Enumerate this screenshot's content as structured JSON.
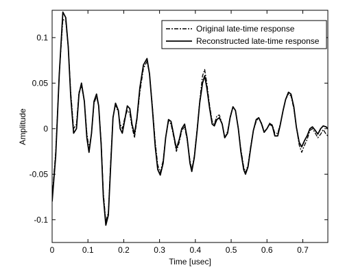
{
  "chart_data": {
    "type": "line",
    "title": "",
    "xlabel": "Time [usec]",
    "ylabel": "Amplitude",
    "xlim": [
      0,
      0.77
    ],
    "ylim": [
      -0.125,
      0.13
    ],
    "xticks": [
      0,
      0.1,
      0.2,
      0.3,
      0.4,
      0.5,
      0.6,
      0.7
    ],
    "xtick_labels": [
      "0",
      "0.1",
      "0.2",
      "0.3",
      "0.4",
      "0.5",
      "0.6",
      "0.7"
    ],
    "yticks": [
      -0.1,
      -0.05,
      0,
      0.05,
      0.1
    ],
    "ytick_labels": [
      "-0.1",
      "-0.05",
      "0",
      "0.05",
      "0.1"
    ],
    "grid": false,
    "legend_position": "top-right",
    "series": [
      {
        "name": "Original late-time response",
        "style": "dashdot",
        "color": "#000000",
        "points": [
          [
            0,
            -0.075
          ],
          [
            0.01,
            -0.025
          ],
          [
            0.02,
            0.06
          ],
          [
            0.03,
            0.12
          ],
          [
            0.038,
            0.118
          ],
          [
            0.045,
            0.09
          ],
          [
            0.052,
            0.04
          ],
          [
            0.06,
            0.0
          ],
          [
            0.068,
            0.005
          ],
          [
            0.075,
            0.04
          ],
          [
            0.082,
            0.047
          ],
          [
            0.09,
            0.03
          ],
          [
            0.097,
            -0.005
          ],
          [
            0.103,
            -0.022
          ],
          [
            0.11,
            -0.005
          ],
          [
            0.117,
            0.028
          ],
          [
            0.124,
            0.035
          ],
          [
            0.13,
            0.025
          ],
          [
            0.137,
            -0.015
          ],
          [
            0.143,
            -0.07
          ],
          [
            0.15,
            -0.102
          ],
          [
            0.157,
            -0.092
          ],
          [
            0.163,
            -0.04
          ],
          [
            0.17,
            0.013
          ],
          [
            0.177,
            0.026
          ],
          [
            0.185,
            0.018
          ],
          [
            0.19,
            0.005
          ],
          [
            0.196,
            0.0
          ],
          [
            0.203,
            0.012
          ],
          [
            0.21,
            0.02
          ],
          [
            0.217,
            0.017
          ],
          [
            0.223,
            0.002
          ],
          [
            0.23,
            -0.01
          ],
          [
            0.237,
            0.01
          ],
          [
            0.245,
            0.04
          ],
          [
            0.255,
            0.066
          ],
          [
            0.265,
            0.074
          ],
          [
            0.272,
            0.06
          ],
          [
            0.28,
            0.025
          ],
          [
            0.288,
            -0.015
          ],
          [
            0.295,
            -0.04
          ],
          [
            0.302,
            -0.048
          ],
          [
            0.31,
            -0.035
          ],
          [
            0.317,
            -0.01
          ],
          [
            0.325,
            0.008
          ],
          [
            0.332,
            0.005
          ],
          [
            0.34,
            -0.01
          ],
          [
            0.347,
            -0.025
          ],
          [
            0.355,
            -0.015
          ],
          [
            0.362,
            -0.002
          ],
          [
            0.37,
            0.002
          ],
          [
            0.377,
            -0.012
          ],
          [
            0.385,
            -0.035
          ],
          [
            0.39,
            -0.045
          ],
          [
            0.397,
            -0.03
          ],
          [
            0.405,
            0.0
          ],
          [
            0.412,
            0.03
          ],
          [
            0.42,
            0.058
          ],
          [
            0.426,
            0.065
          ],
          [
            0.432,
            0.05
          ],
          [
            0.44,
            0.025
          ],
          [
            0.447,
            0.008
          ],
          [
            0.453,
            0.005
          ],
          [
            0.46,
            0.014
          ],
          [
            0.467,
            0.015
          ],
          [
            0.475,
            0.005
          ],
          [
            0.482,
            -0.01
          ],
          [
            0.49,
            -0.003
          ],
          [
            0.497,
            0.013
          ],
          [
            0.505,
            0.024
          ],
          [
            0.512,
            0.02
          ],
          [
            0.52,
            0.0
          ],
          [
            0.527,
            -0.022
          ],
          [
            0.535,
            -0.042
          ],
          [
            0.54,
            -0.048
          ],
          [
            0.547,
            -0.04
          ],
          [
            0.555,
            -0.018
          ],
          [
            0.562,
            -0.002
          ],
          [
            0.57,
            0.008
          ],
          [
            0.577,
            0.012
          ],
          [
            0.585,
            0.006
          ],
          [
            0.592,
            -0.003
          ],
          [
            0.6,
            0.0
          ],
          [
            0.607,
            0.006
          ],
          [
            0.615,
            0.004
          ],
          [
            0.622,
            -0.005
          ],
          [
            0.63,
            -0.005
          ],
          [
            0.637,
            0.005
          ],
          [
            0.645,
            0.02
          ],
          [
            0.652,
            0.032
          ],
          [
            0.66,
            0.038
          ],
          [
            0.667,
            0.036
          ],
          [
            0.675,
            0.022
          ],
          [
            0.682,
            0.002
          ],
          [
            0.69,
            -0.018
          ],
          [
            0.697,
            -0.026
          ],
          [
            0.705,
            -0.018
          ],
          [
            0.712,
            -0.012
          ],
          [
            0.72,
            -0.002
          ],
          [
            0.727,
            0.0
          ],
          [
            0.735,
            -0.005
          ],
          [
            0.742,
            -0.01
          ],
          [
            0.75,
            -0.006
          ],
          [
            0.757,
            -0.001
          ],
          [
            0.765,
            -0.006
          ],
          [
            0.77,
            -0.008
          ]
        ]
      },
      {
        "name": "Reconstructed late-time response",
        "style": "solid",
        "color": "#000000",
        "points": [
          [
            0,
            -0.08
          ],
          [
            0.01,
            -0.03
          ],
          [
            0.02,
            0.06
          ],
          [
            0.03,
            0.128
          ],
          [
            0.038,
            0.122
          ],
          [
            0.045,
            0.09
          ],
          [
            0.052,
            0.035
          ],
          [
            0.06,
            -0.005
          ],
          [
            0.068,
            0.0
          ],
          [
            0.075,
            0.038
          ],
          [
            0.082,
            0.05
          ],
          [
            0.09,
            0.03
          ],
          [
            0.097,
            -0.01
          ],
          [
            0.103,
            -0.026
          ],
          [
            0.11,
            -0.005
          ],
          [
            0.117,
            0.03
          ],
          [
            0.124,
            0.038
          ],
          [
            0.13,
            0.025
          ],
          [
            0.137,
            -0.018
          ],
          [
            0.143,
            -0.075
          ],
          [
            0.15,
            -0.106
          ],
          [
            0.157,
            -0.095
          ],
          [
            0.163,
            -0.045
          ],
          [
            0.17,
            0.012
          ],
          [
            0.177,
            0.028
          ],
          [
            0.185,
            0.02
          ],
          [
            0.19,
            0.0
          ],
          [
            0.196,
            -0.005
          ],
          [
            0.203,
            0.01
          ],
          [
            0.21,
            0.025
          ],
          [
            0.217,
            0.022
          ],
          [
            0.223,
            0.005
          ],
          [
            0.23,
            -0.006
          ],
          [
            0.237,
            0.012
          ],
          [
            0.245,
            0.045
          ],
          [
            0.255,
            0.07
          ],
          [
            0.265,
            0.077
          ],
          [
            0.272,
            0.06
          ],
          [
            0.28,
            0.022
          ],
          [
            0.288,
            -0.02
          ],
          [
            0.295,
            -0.045
          ],
          [
            0.302,
            -0.051
          ],
          [
            0.31,
            -0.038
          ],
          [
            0.317,
            -0.01
          ],
          [
            0.325,
            0.01
          ],
          [
            0.332,
            0.008
          ],
          [
            0.34,
            -0.008
          ],
          [
            0.347,
            -0.022
          ],
          [
            0.355,
            -0.012
          ],
          [
            0.362,
            0.0
          ],
          [
            0.37,
            0.005
          ],
          [
            0.377,
            -0.01
          ],
          [
            0.385,
            -0.038
          ],
          [
            0.39,
            -0.047
          ],
          [
            0.397,
            -0.032
          ],
          [
            0.405,
            -0.002
          ],
          [
            0.412,
            0.028
          ],
          [
            0.42,
            0.05
          ],
          [
            0.426,
            0.058
          ],
          [
            0.432,
            0.045
          ],
          [
            0.44,
            0.022
          ],
          [
            0.447,
            0.005
          ],
          [
            0.453,
            0.003
          ],
          [
            0.46,
            0.01
          ],
          [
            0.467,
            0.012
          ],
          [
            0.475,
            0.005
          ],
          [
            0.482,
            -0.01
          ],
          [
            0.49,
            -0.005
          ],
          [
            0.497,
            0.012
          ],
          [
            0.505,
            0.024
          ],
          [
            0.512,
            0.02
          ],
          [
            0.52,
            0.0
          ],
          [
            0.527,
            -0.025
          ],
          [
            0.535,
            -0.045
          ],
          [
            0.54,
            -0.05
          ],
          [
            0.547,
            -0.042
          ],
          [
            0.555,
            -0.02
          ],
          [
            0.562,
            -0.002
          ],
          [
            0.57,
            0.01
          ],
          [
            0.577,
            0.012
          ],
          [
            0.585,
            0.005
          ],
          [
            0.592,
            -0.004
          ],
          [
            0.6,
            0.0
          ],
          [
            0.607,
            0.005
          ],
          [
            0.615,
            0.003
          ],
          [
            0.622,
            -0.008
          ],
          [
            0.63,
            -0.008
          ],
          [
            0.637,
            0.004
          ],
          [
            0.645,
            0.02
          ],
          [
            0.652,
            0.032
          ],
          [
            0.66,
            0.04
          ],
          [
            0.667,
            0.038
          ],
          [
            0.675,
            0.024
          ],
          [
            0.682,
            0.002
          ],
          [
            0.69,
            -0.015
          ],
          [
            0.697,
            -0.02
          ],
          [
            0.705,
            -0.013
          ],
          [
            0.712,
            -0.008
          ],
          [
            0.72,
            0.0
          ],
          [
            0.727,
            0.002
          ],
          [
            0.735,
            -0.002
          ],
          [
            0.742,
            -0.006
          ],
          [
            0.75,
            0.0
          ],
          [
            0.757,
            0.003
          ],
          [
            0.765,
            0.002
          ],
          [
            0.77,
            0.0
          ]
        ]
      }
    ]
  }
}
